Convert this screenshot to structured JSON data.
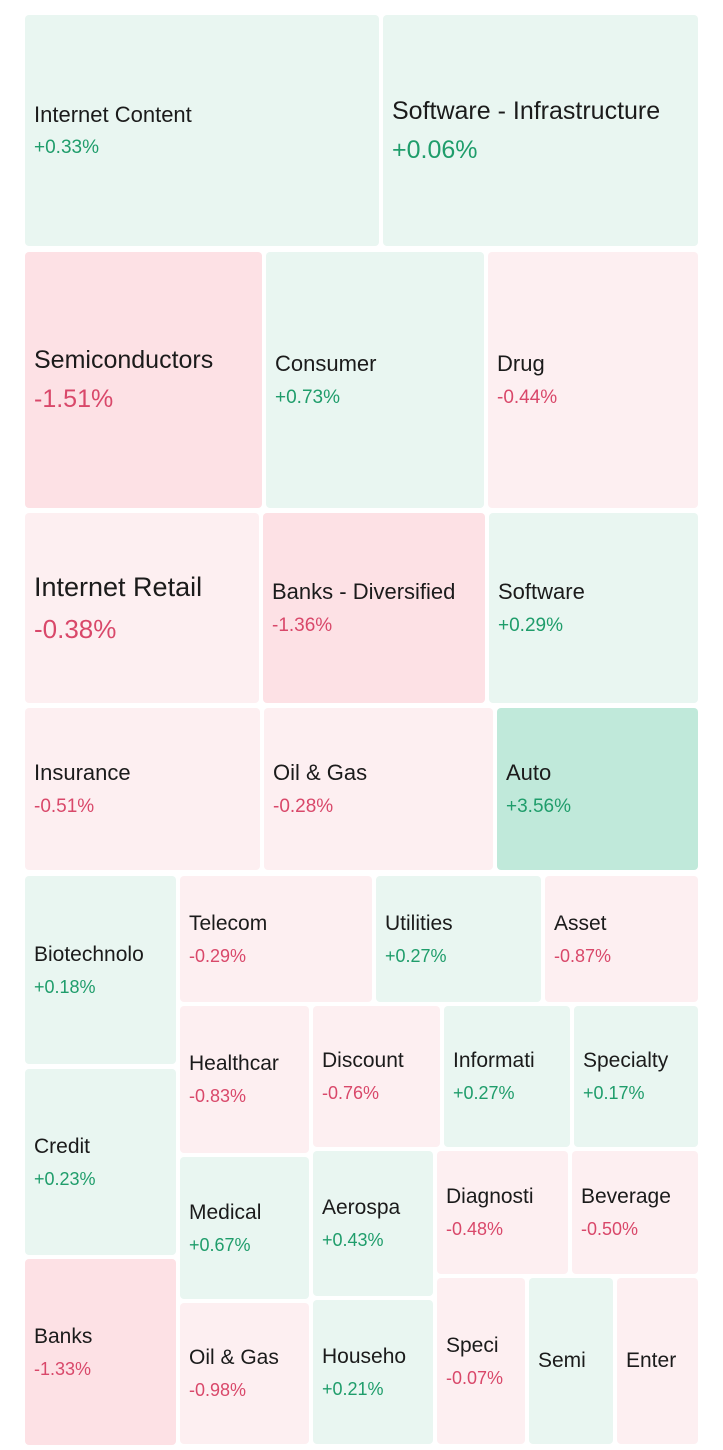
{
  "colors": {
    "strong_up": "#c0e9da",
    "up": "#e9f6f1",
    "down": "#fdeff1",
    "strong_down": "#fde1e5",
    "text_up": "#1f9d6b",
    "text_down": "#d9486a"
  },
  "tiles": [
    {
      "name": "Internet Content",
      "change": "+0.33%",
      "trend": "up",
      "shade": "up"
    },
    {
      "name": "Software - Infrastructure",
      "change": "+0.06%",
      "trend": "up",
      "shade": "up"
    },
    {
      "name": "Semiconductors",
      "change": "-1.51%",
      "trend": "down",
      "shade": "strong_down"
    },
    {
      "name": "Consumer",
      "change": "+0.73%",
      "trend": "up",
      "shade": "up"
    },
    {
      "name": "Drug",
      "change": "-0.44%",
      "trend": "down",
      "shade": "down"
    },
    {
      "name": "Internet Retail",
      "change": "-0.38%",
      "trend": "down",
      "shade": "down"
    },
    {
      "name": "Banks - Diversified",
      "change": "-1.36%",
      "trend": "down",
      "shade": "strong_down"
    },
    {
      "name": "Software",
      "change": "+0.29%",
      "trend": "up",
      "shade": "up"
    },
    {
      "name": "Insurance",
      "change": "-0.51%",
      "trend": "down",
      "shade": "down"
    },
    {
      "name": "Oil & Gas",
      "change": "-0.28%",
      "trend": "down",
      "shade": "down"
    },
    {
      "name": "Auto",
      "change": "+3.56%",
      "trend": "up",
      "shade": "strong_up"
    },
    {
      "name": "Biotechnolo",
      "change": "+0.18%",
      "trend": "up",
      "shade": "up"
    },
    {
      "name": "Telecom",
      "change": "-0.29%",
      "trend": "down",
      "shade": "down"
    },
    {
      "name": "Utilities",
      "change": "+0.27%",
      "trend": "up",
      "shade": "up"
    },
    {
      "name": "Asset",
      "change": "-0.87%",
      "trend": "down",
      "shade": "down"
    },
    {
      "name": "Healthcar",
      "change": "-0.83%",
      "trend": "down",
      "shade": "down"
    },
    {
      "name": "Discount",
      "change": "-0.76%",
      "trend": "down",
      "shade": "down"
    },
    {
      "name": "Informati",
      "change": "+0.27%",
      "trend": "up",
      "shade": "up"
    },
    {
      "name": "Specialty",
      "change": "+0.17%",
      "trend": "up",
      "shade": "up"
    },
    {
      "name": "Credit",
      "change": "+0.23%",
      "trend": "up",
      "shade": "up"
    },
    {
      "name": "Medical",
      "change": "+0.67%",
      "trend": "up",
      "shade": "up"
    },
    {
      "name": "Aerospa",
      "change": "+0.43%",
      "trend": "up",
      "shade": "up"
    },
    {
      "name": "Diagnosti",
      "change": "-0.48%",
      "trend": "down",
      "shade": "down"
    },
    {
      "name": "Beverage",
      "change": "-0.50%",
      "trend": "down",
      "shade": "down"
    },
    {
      "name": "Banks",
      "change": "-1.33%",
      "trend": "down",
      "shade": "strong_down"
    },
    {
      "name": "Oil & Gas",
      "change": "-0.98%",
      "trend": "down",
      "shade": "down"
    },
    {
      "name": "Househo",
      "change": "+0.21%",
      "trend": "up",
      "shade": "up"
    },
    {
      "name": "Speci",
      "change": "-0.07%",
      "trend": "down",
      "shade": "down"
    },
    {
      "name": "Semi",
      "change": "",
      "trend": "up",
      "shade": "up"
    },
    {
      "name": "Enter",
      "change": "",
      "trend": "down",
      "shade": "down"
    }
  ]
}
